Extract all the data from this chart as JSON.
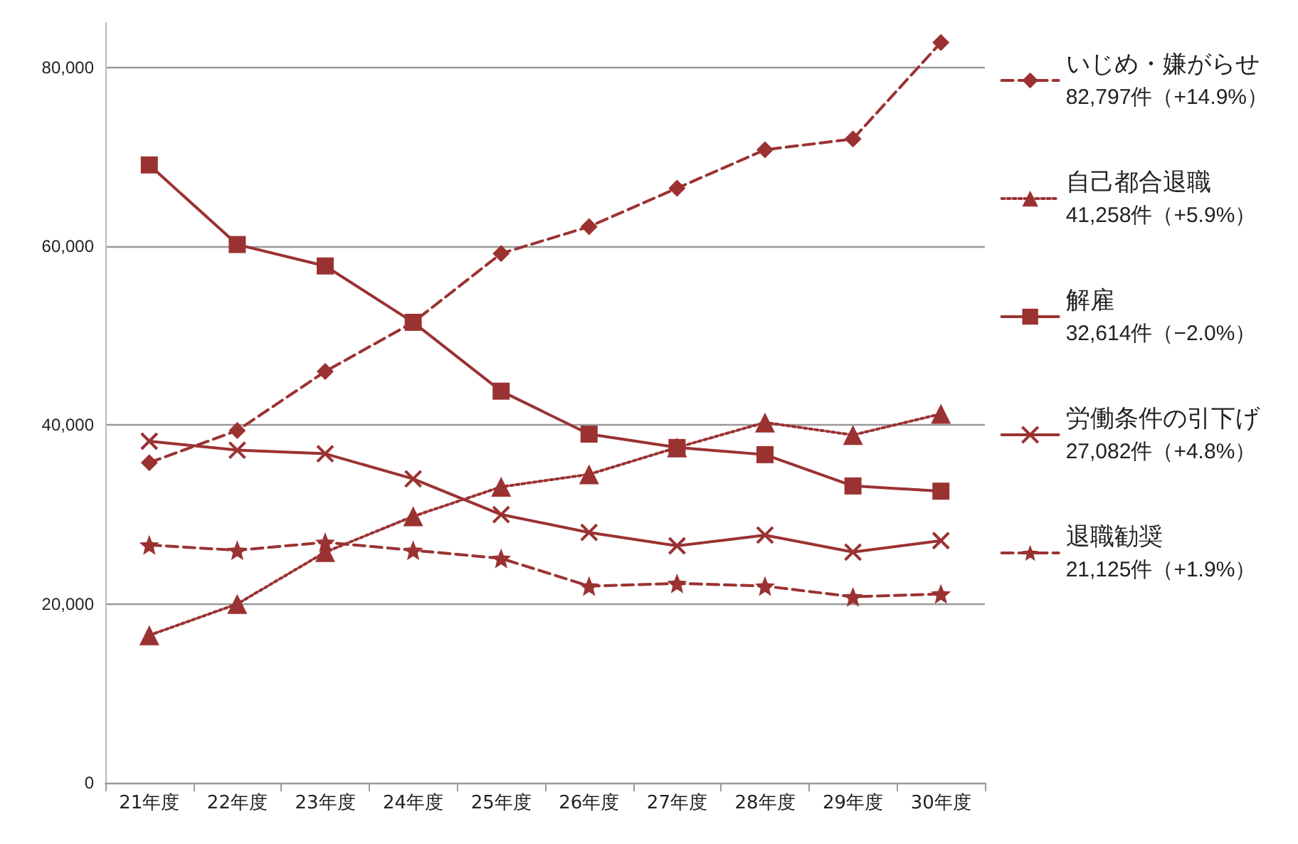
{
  "chart_data": {
    "type": "line",
    "categories": [
      "21年度",
      "22年度",
      "23年度",
      "24年度",
      "25年度",
      "26年度",
      "27年度",
      "28年度",
      "29年度",
      "30年度"
    ],
    "series": [
      {
        "name": "いじめ・嫌がらせ",
        "color": "#9b3232",
        "line_style": "dashed",
        "marker": "diamond",
        "values": [
          35800,
          39400,
          46000,
          51500,
          59200,
          62200,
          66500,
          70800,
          72000,
          82797
        ]
      },
      {
        "name": "自己都合退職",
        "color": "#9b3232",
        "line_style": "dotted",
        "marker": "triangle",
        "values": [
          16500,
          20000,
          25800,
          29800,
          33100,
          34500,
          37500,
          40300,
          38900,
          41258
        ]
      },
      {
        "name": "解雇",
        "color": "#9b3232",
        "line_style": "solid",
        "marker": "square",
        "values": [
          69100,
          60200,
          57800,
          51500,
          43800,
          39000,
          37500,
          36700,
          33200,
          32614
        ]
      },
      {
        "name": "労働条件の引下げ",
        "color": "#9b3232",
        "line_style": "solid",
        "marker": "cross",
        "values": [
          38200,
          37200,
          36800,
          34000,
          30000,
          28000,
          26500,
          27700,
          25800,
          27082
        ]
      },
      {
        "name": "退職勧奨",
        "color": "#9b3232",
        "line_style": "dashed",
        "marker": "star",
        "values": [
          26600,
          26000,
          26900,
          26000,
          25100,
          22000,
          22300,
          22000,
          20800,
          21125
        ]
      }
    ],
    "annotations": [
      "82,797件（+14.9%）",
      "41,258件（+5.9%）",
      "32,614件（−2.0%）",
      "27,082件（+4.8%）",
      "21,125件（+1.9%）"
    ],
    "ylim": [
      0,
      85000
    ],
    "yticks": [
      0,
      {
        "value": 20000,
        "label": "20,000"
      },
      {
        "value": 40000,
        "label": "40,000"
      },
      {
        "value": 60000,
        "label": "60,000"
      },
      {
        "value": 80000,
        "label": "80,000"
      }
    ],
    "grid": "y",
    "legend": "right"
  }
}
